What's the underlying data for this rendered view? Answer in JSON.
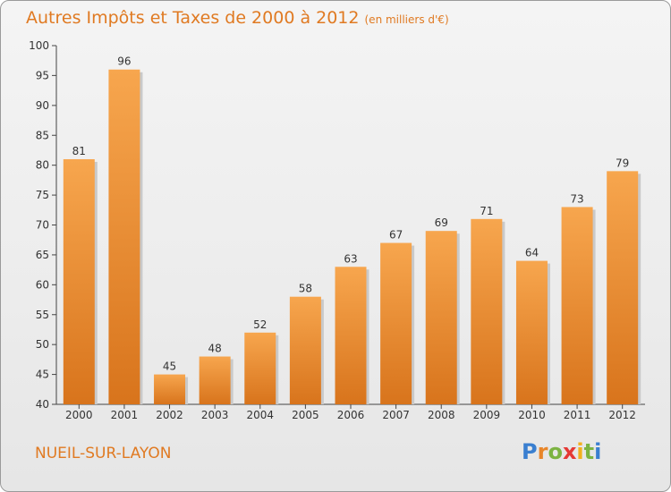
{
  "title": "Autres Impôts et Taxes de 2000 à 2012",
  "unit": "(en milliers d'€)",
  "city": "NUEIL-SUR-LAYON",
  "logo": {
    "letters": [
      "P",
      "r",
      "o",
      "x",
      "i",
      "t",
      "i"
    ],
    "colors": [
      "#3a7fd0",
      "#e8862a",
      "#7cb342",
      "#e53935",
      "#f2b01e",
      "#7cb342",
      "#3a7fd0"
    ]
  },
  "colors": {
    "bar_top": "#f7a64e",
    "bar_bottom": "#d8741c",
    "accent": "#e07a22"
  },
  "chart_data": {
    "type": "bar",
    "categories": [
      "2000",
      "2001",
      "2002",
      "2003",
      "2004",
      "2005",
      "2006",
      "2007",
      "2008",
      "2009",
      "2010",
      "2011",
      "2012"
    ],
    "values": [
      81,
      96,
      45,
      48,
      52,
      58,
      63,
      67,
      69,
      71,
      64,
      73,
      79
    ],
    "ylim": [
      40,
      100
    ],
    "yticks": [
      40,
      45,
      50,
      55,
      60,
      65,
      70,
      75,
      80,
      85,
      90,
      95,
      100
    ],
    "grid": false
  }
}
